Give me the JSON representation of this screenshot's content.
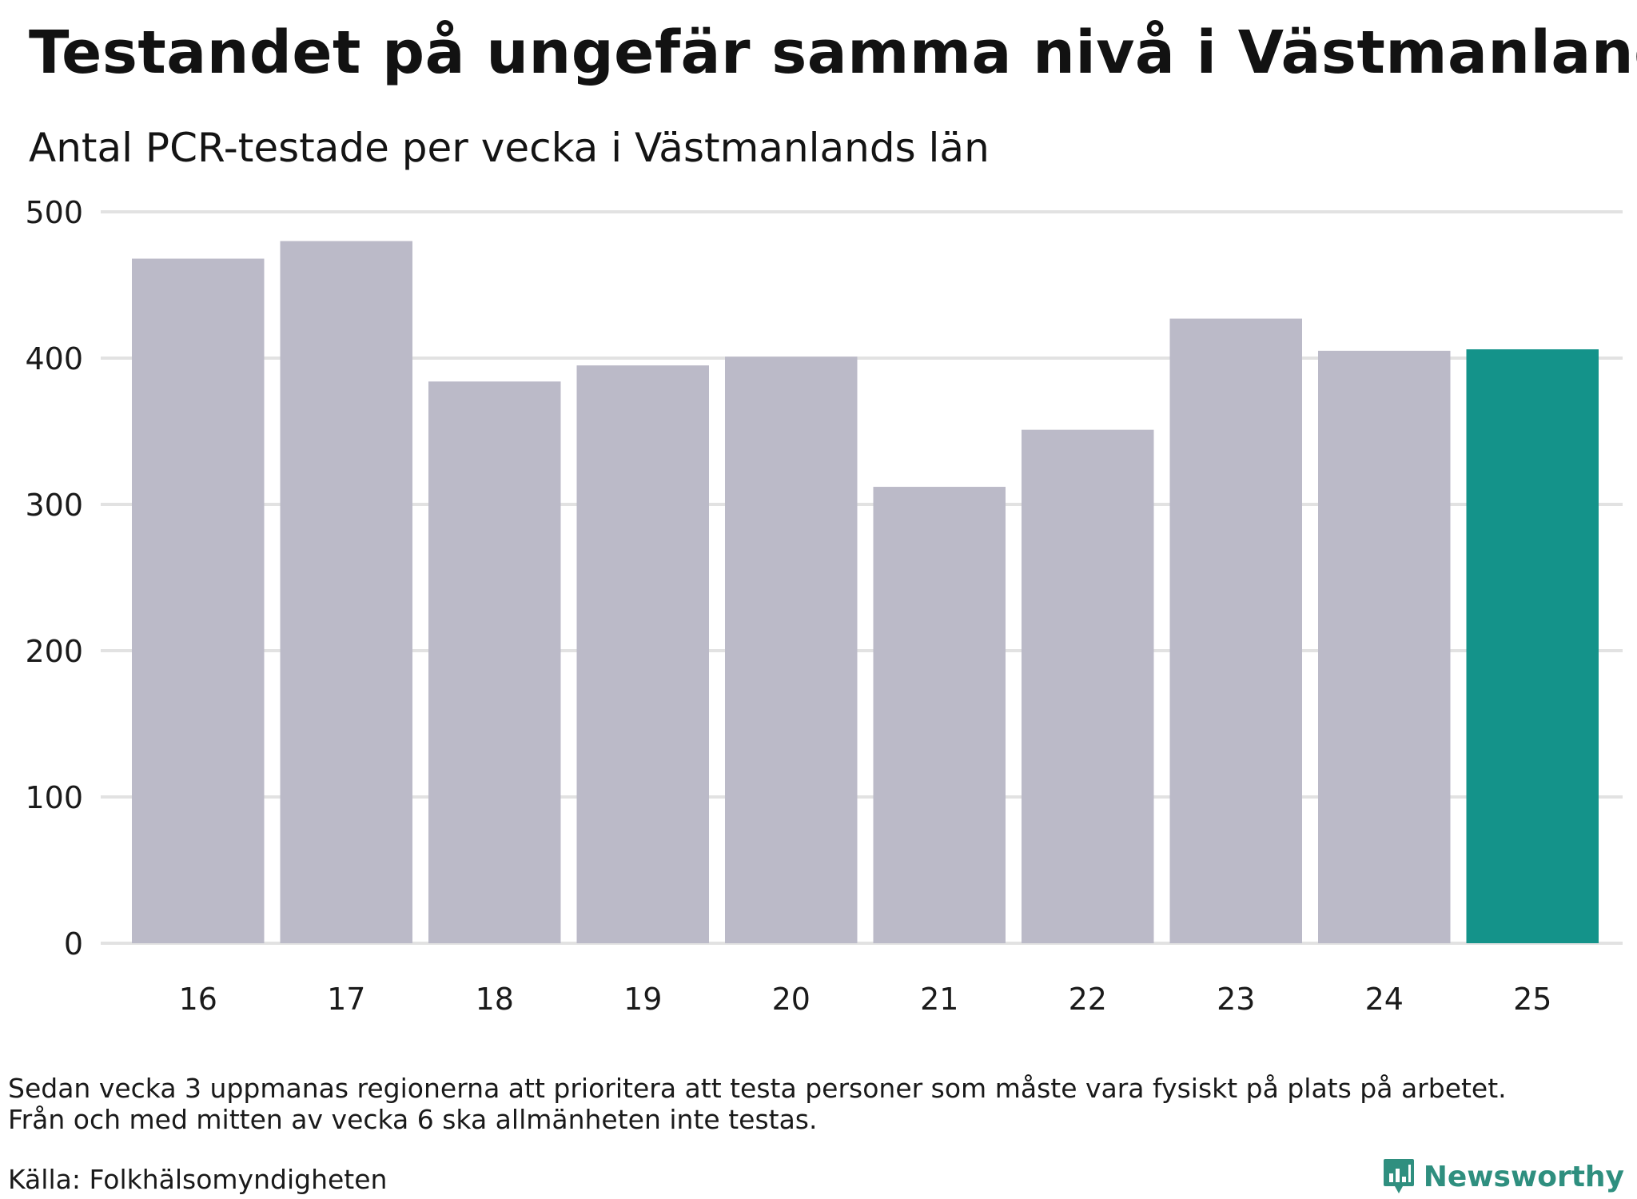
{
  "header": {
    "title": "Testandet på ungefär samma nivå i Västmanland",
    "subtitle": "Antal PCR-testade per vecka i Västmanlands län"
  },
  "chart_data": {
    "type": "bar",
    "categories": [
      "16",
      "17",
      "18",
      "19",
      "20",
      "21",
      "22",
      "23",
      "24",
      "25"
    ],
    "values": [
      468,
      480,
      384,
      395,
      401,
      312,
      351,
      427,
      405,
      406
    ],
    "highlight_index": 9,
    "ylim": [
      0,
      500
    ],
    "yticks": [
      0,
      100,
      200,
      300,
      400,
      500
    ],
    "grid": true,
    "colors": {
      "bar": "#bbbac8",
      "highlight": "#14938a",
      "grid": "#e2e2e2"
    }
  },
  "notes": {
    "line1": "Sedan vecka 3 uppmanas regionerna att prioritera att testa personer som måste vara fysiskt på plats på arbetet.",
    "line2": "Från och med mitten av vecka 6 ska allmänheten inte testas."
  },
  "source": "Källa: Folkhälsomyndigheten",
  "brand": {
    "name": "Newsworthy",
    "icon": "newsworthy-logo-icon",
    "color": "#2f8f7f"
  }
}
